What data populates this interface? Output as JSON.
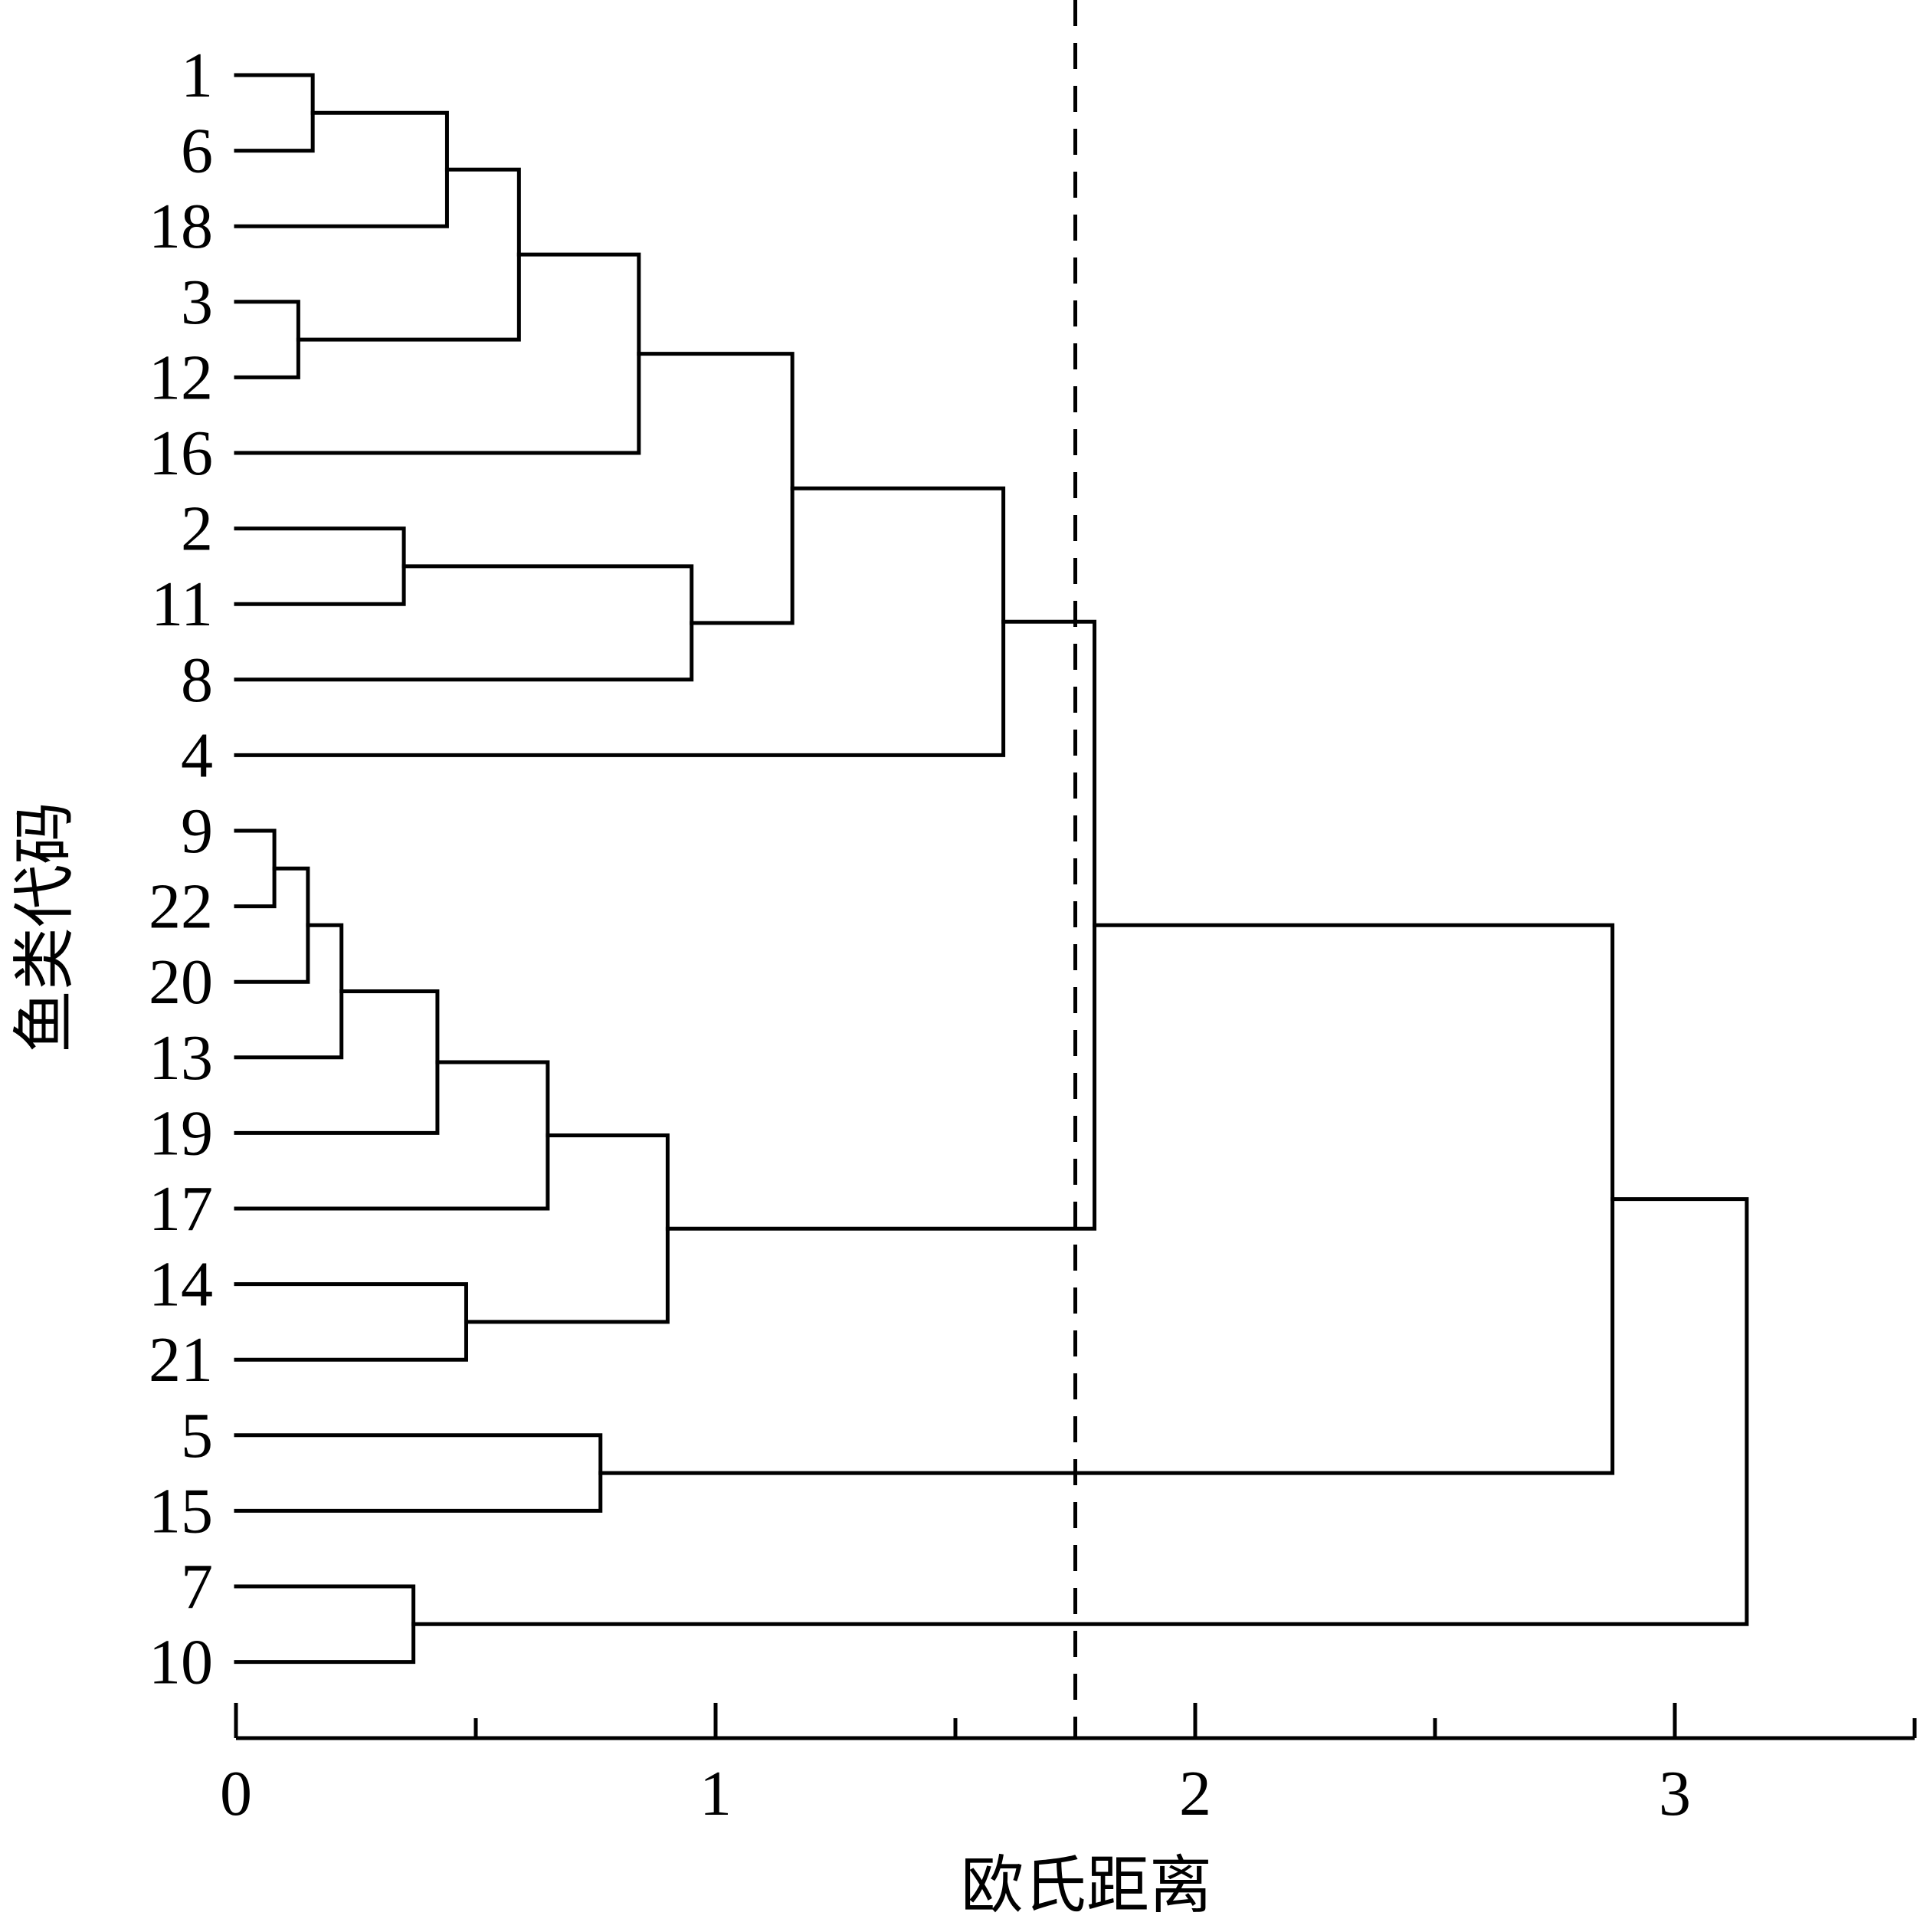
{
  "chart_data": {
    "type": "dendrogram",
    "xlabel": "欧氏距离",
    "ylabel": "鱼类代码",
    "xlim": [
      0,
      3.5
    ],
    "x_ticks": [
      0,
      1,
      2,
      3
    ],
    "x_minor_ticks": [
      0.5,
      1.5,
      2.5,
      3.5
    ],
    "grid": false,
    "cut_threshold": 1.75,
    "leaf_order": [
      "1",
      "6",
      "18",
      "3",
      "12",
      "16",
      "2",
      "11",
      "8",
      "4",
      "9",
      "22",
      "20",
      "13",
      "19",
      "17",
      "14",
      "21",
      "5",
      "15",
      "7",
      "10"
    ],
    "merges": [
      {
        "id": "m1",
        "left": "9",
        "right": "22",
        "height": 0.08
      },
      {
        "id": "m2",
        "left": "3",
        "right": "12",
        "height": 0.13
      },
      {
        "id": "m3",
        "left": "1",
        "right": "6",
        "height": 0.16
      },
      {
        "id": "m4",
        "left": "m1",
        "right": "20",
        "height": 0.15
      },
      {
        "id": "m5",
        "left": "m4",
        "right": "13",
        "height": 0.22
      },
      {
        "id": "m6",
        "left": "2",
        "right": "11",
        "height": 0.35
      },
      {
        "id": "m7",
        "left": "7",
        "right": "10",
        "height": 0.37
      },
      {
        "id": "m8",
        "left": "m5",
        "right": "19",
        "height": 0.42
      },
      {
        "id": "m9",
        "left": "m3",
        "right": "18",
        "height": 0.44
      },
      {
        "id": "m10",
        "left": "14",
        "right": "21",
        "height": 0.48
      },
      {
        "id": "m11",
        "left": "m9",
        "right": "m2",
        "height": 0.59
      },
      {
        "id": "m12",
        "left": "m8",
        "right": "17",
        "height": 0.65
      },
      {
        "id": "m13",
        "left": "5",
        "right": "15",
        "height": 0.76
      },
      {
        "id": "m14",
        "left": "m11",
        "right": "16",
        "height": 0.84
      },
      {
        "id": "m15",
        "left": "m12",
        "right": "m10",
        "height": 0.9
      },
      {
        "id": "m16",
        "left": "m6",
        "right": "8",
        "height": 0.95
      },
      {
        "id": "m17",
        "left": "m14",
        "right": "m16",
        "height": 1.16
      },
      {
        "id": "m18",
        "left": "m17",
        "right": "4",
        "height": 1.6
      },
      {
        "id": "m19",
        "left": "m18",
        "right": "m15",
        "height": 1.79
      },
      {
        "id": "m20",
        "left": "m19",
        "right": "m13",
        "height": 2.87
      },
      {
        "id": "m21",
        "left": "m20",
        "right": "m7",
        "height": 3.15
      }
    ]
  }
}
